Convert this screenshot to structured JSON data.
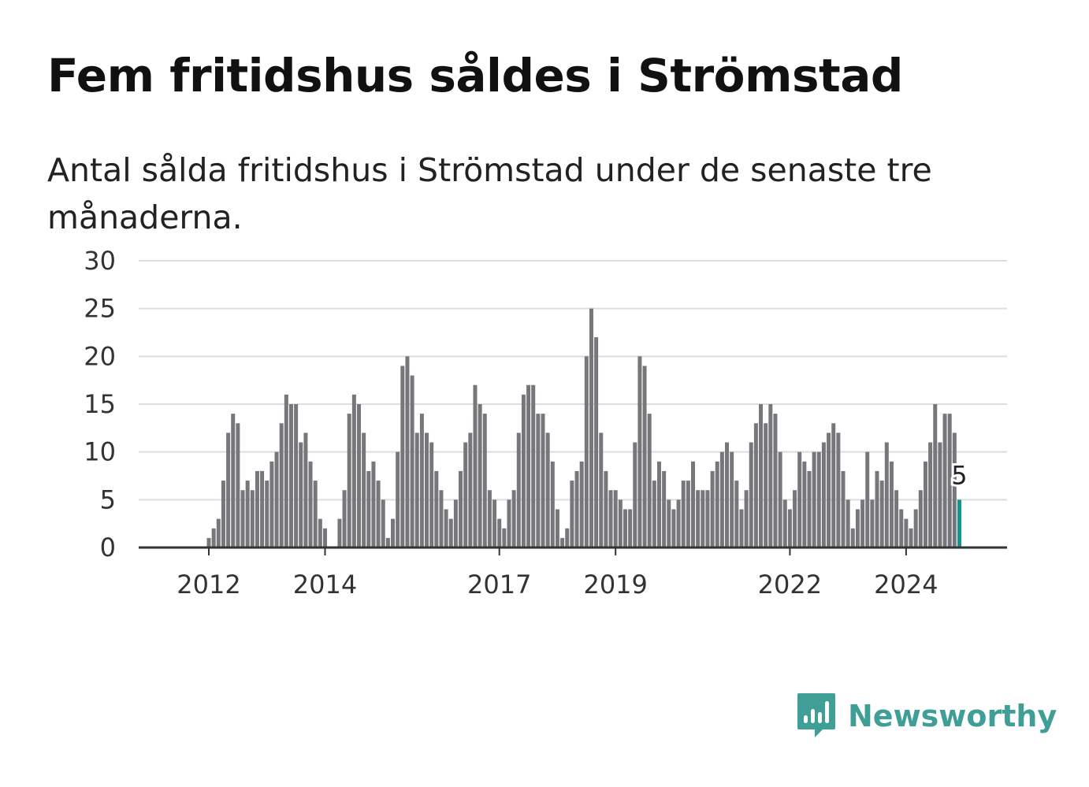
{
  "header": {
    "title": "Fem fritidshus såldes i Strömstad",
    "subtitle": "Antal sålda fritidshus i Strömstad under de senaste tre månaderna."
  },
  "logo": {
    "text": "Newsworthy",
    "icon": "chat-bar-chart-icon",
    "color": "#3f9e95"
  },
  "colors": {
    "bar": "#77767b",
    "highlight": "#12958e",
    "grid": "#dddddd",
    "axis": "#333333"
  },
  "chart_data": {
    "type": "bar",
    "title": "Fem fritidshus såldes i Strömstad",
    "subtitle": "Antal sålda fritidshus i Strömstad under de senaste tre månaderna.",
    "start_month": "2011-04",
    "x_ticks": [
      "2012",
      "2014",
      "2017",
      "2019",
      "2022",
      "2024"
    ],
    "y_ticks": [
      0,
      5,
      10,
      15,
      20,
      25,
      30
    ],
    "ylim": [
      0,
      30
    ],
    "grid": true,
    "highlight_label": "5",
    "values": [
      0,
      0,
      0,
      0,
      0,
      0,
      0,
      0,
      0,
      1,
      2,
      3,
      7,
      12,
      14,
      13,
      6,
      7,
      6,
      8,
      8,
      7,
      9,
      10,
      13,
      16,
      15,
      15,
      11,
      12,
      9,
      7,
      3,
      2,
      0,
      0,
      3,
      6,
      14,
      16,
      15,
      12,
      8,
      9,
      7,
      5,
      1,
      3,
      10,
      19,
      20,
      18,
      12,
      14,
      12,
      11,
      8,
      6,
      4,
      3,
      5,
      8,
      11,
      12,
      17,
      15,
      14,
      6,
      5,
      3,
      2,
      5,
      6,
      12,
      16,
      17,
      17,
      14,
      14,
      12,
      9,
      4,
      1,
      2,
      7,
      8,
      9,
      20,
      25,
      22,
      12,
      8,
      6,
      6,
      5,
      4,
      4,
      11,
      20,
      19,
      14,
      7,
      9,
      8,
      5,
      4,
      5,
      7,
      7,
      9,
      6,
      6,
      6,
      8,
      9,
      10,
      11,
      10,
      7,
      4,
      6,
      11,
      13,
      15,
      13,
      15,
      14,
      10,
      5,
      4,
      6,
      10,
      9,
      8,
      10,
      10,
      11,
      12,
      13,
      12,
      8,
      5,
      2,
      4,
      5,
      10,
      5,
      8,
      7,
      11,
      9,
      6,
      4,
      3,
      2,
      4,
      6,
      9,
      11,
      15,
      11,
      14,
      14,
      12,
      5
    ]
  }
}
